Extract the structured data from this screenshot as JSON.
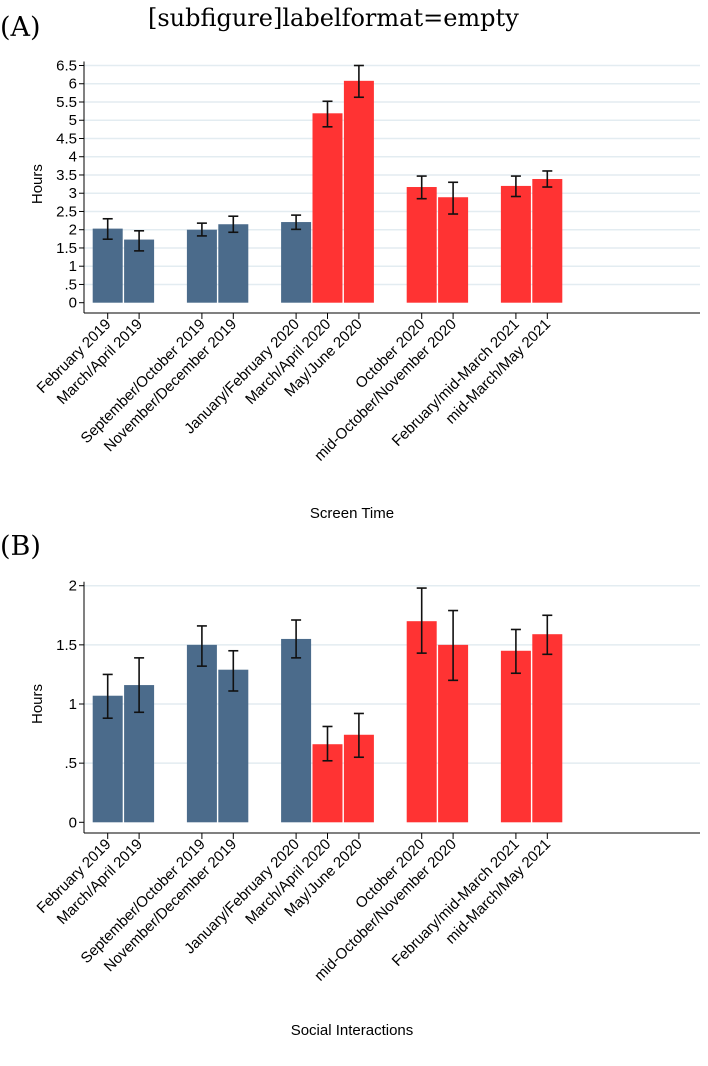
{
  "header": {
    "caption_artifact": "[subfigure]labelformat=empty"
  },
  "colors": {
    "pre": "#4b6b8b",
    "post": "#ff3333",
    "grid": "#e3ecf1",
    "error": "#111111"
  },
  "chart_data": [
    {
      "panel": "(A)",
      "type": "bar",
      "title": "",
      "xlabel": "Screen Time",
      "ylabel": "Hours",
      "ylim": [
        0,
        6.5
      ],
      "yticks": [
        0,
        0.5,
        1,
        1.5,
        2,
        2.5,
        3,
        3.5,
        4,
        4.5,
        5,
        5.5,
        6,
        6.5
      ],
      "ytick_labels": [
        "0",
        ".5",
        "1",
        "1.5",
        "2",
        "2.5",
        "3",
        "3.5",
        "4",
        "4.5",
        "5",
        "5.5",
        "6",
        "6.5"
      ],
      "grid": true,
      "categories": [
        "February 2019",
        "March/April 2019",
        "September/October 2019",
        "November/December 2019",
        "January/February 2020",
        "March/April 2020",
        "May/June 2020",
        "October 2020",
        "mid-October/November 2020",
        "February/mid-March 2021",
        "mid-March/May 2021"
      ],
      "groups": [
        0,
        0,
        1,
        1,
        2,
        2,
        2,
        3,
        3,
        4,
        4
      ],
      "series_type": [
        "pre",
        "pre",
        "pre",
        "pre",
        "pre",
        "post",
        "post",
        "post",
        "post",
        "post",
        "post"
      ],
      "values": [
        2.03,
        1.73,
        2.0,
        2.15,
        2.21,
        5.19,
        6.08,
        3.17,
        2.89,
        3.2,
        3.39
      ],
      "ci_low": [
        1.74,
        1.42,
        1.83,
        1.93,
        2.01,
        4.82,
        5.63,
        2.85,
        2.43,
        2.91,
        3.17
      ],
      "ci_high": [
        2.3,
        1.97,
        2.18,
        2.37,
        2.4,
        5.52,
        6.5,
        3.47,
        3.3,
        3.47,
        3.61
      ]
    },
    {
      "panel": "(B)",
      "type": "bar",
      "title": "",
      "xlabel": "Social Interactions",
      "ylabel": "Hours",
      "ylim": [
        0,
        2
      ],
      "yticks": [
        0,
        0.5,
        1,
        1.5,
        2
      ],
      "ytick_labels": [
        "0",
        ".5",
        "1",
        "1.5",
        "2"
      ],
      "grid": true,
      "categories": [
        "February 2019",
        "March/April 2019",
        "September/October 2019",
        "November/December 2019",
        "January/February 2020",
        "March/April 2020",
        "May/June 2020",
        "October 2020",
        "mid-October/November 2020",
        "February/mid-March 2021",
        "mid-March/May 2021"
      ],
      "groups": [
        0,
        0,
        1,
        1,
        2,
        2,
        2,
        3,
        3,
        4,
        4
      ],
      "series_type": [
        "pre",
        "pre",
        "pre",
        "pre",
        "pre",
        "post",
        "post",
        "post",
        "post",
        "post",
        "post"
      ],
      "values": [
        1.07,
        1.16,
        1.5,
        1.29,
        1.55,
        0.66,
        0.74,
        1.7,
        1.5,
        1.45,
        1.59
      ],
      "ci_low": [
        0.88,
        0.93,
        1.32,
        1.11,
        1.39,
        0.52,
        0.55,
        1.43,
        1.2,
        1.26,
        1.42
      ],
      "ci_high": [
        1.25,
        1.39,
        1.66,
        1.45,
        1.71,
        0.81,
        0.92,
        1.98,
        1.79,
        1.63,
        1.75
      ]
    }
  ]
}
